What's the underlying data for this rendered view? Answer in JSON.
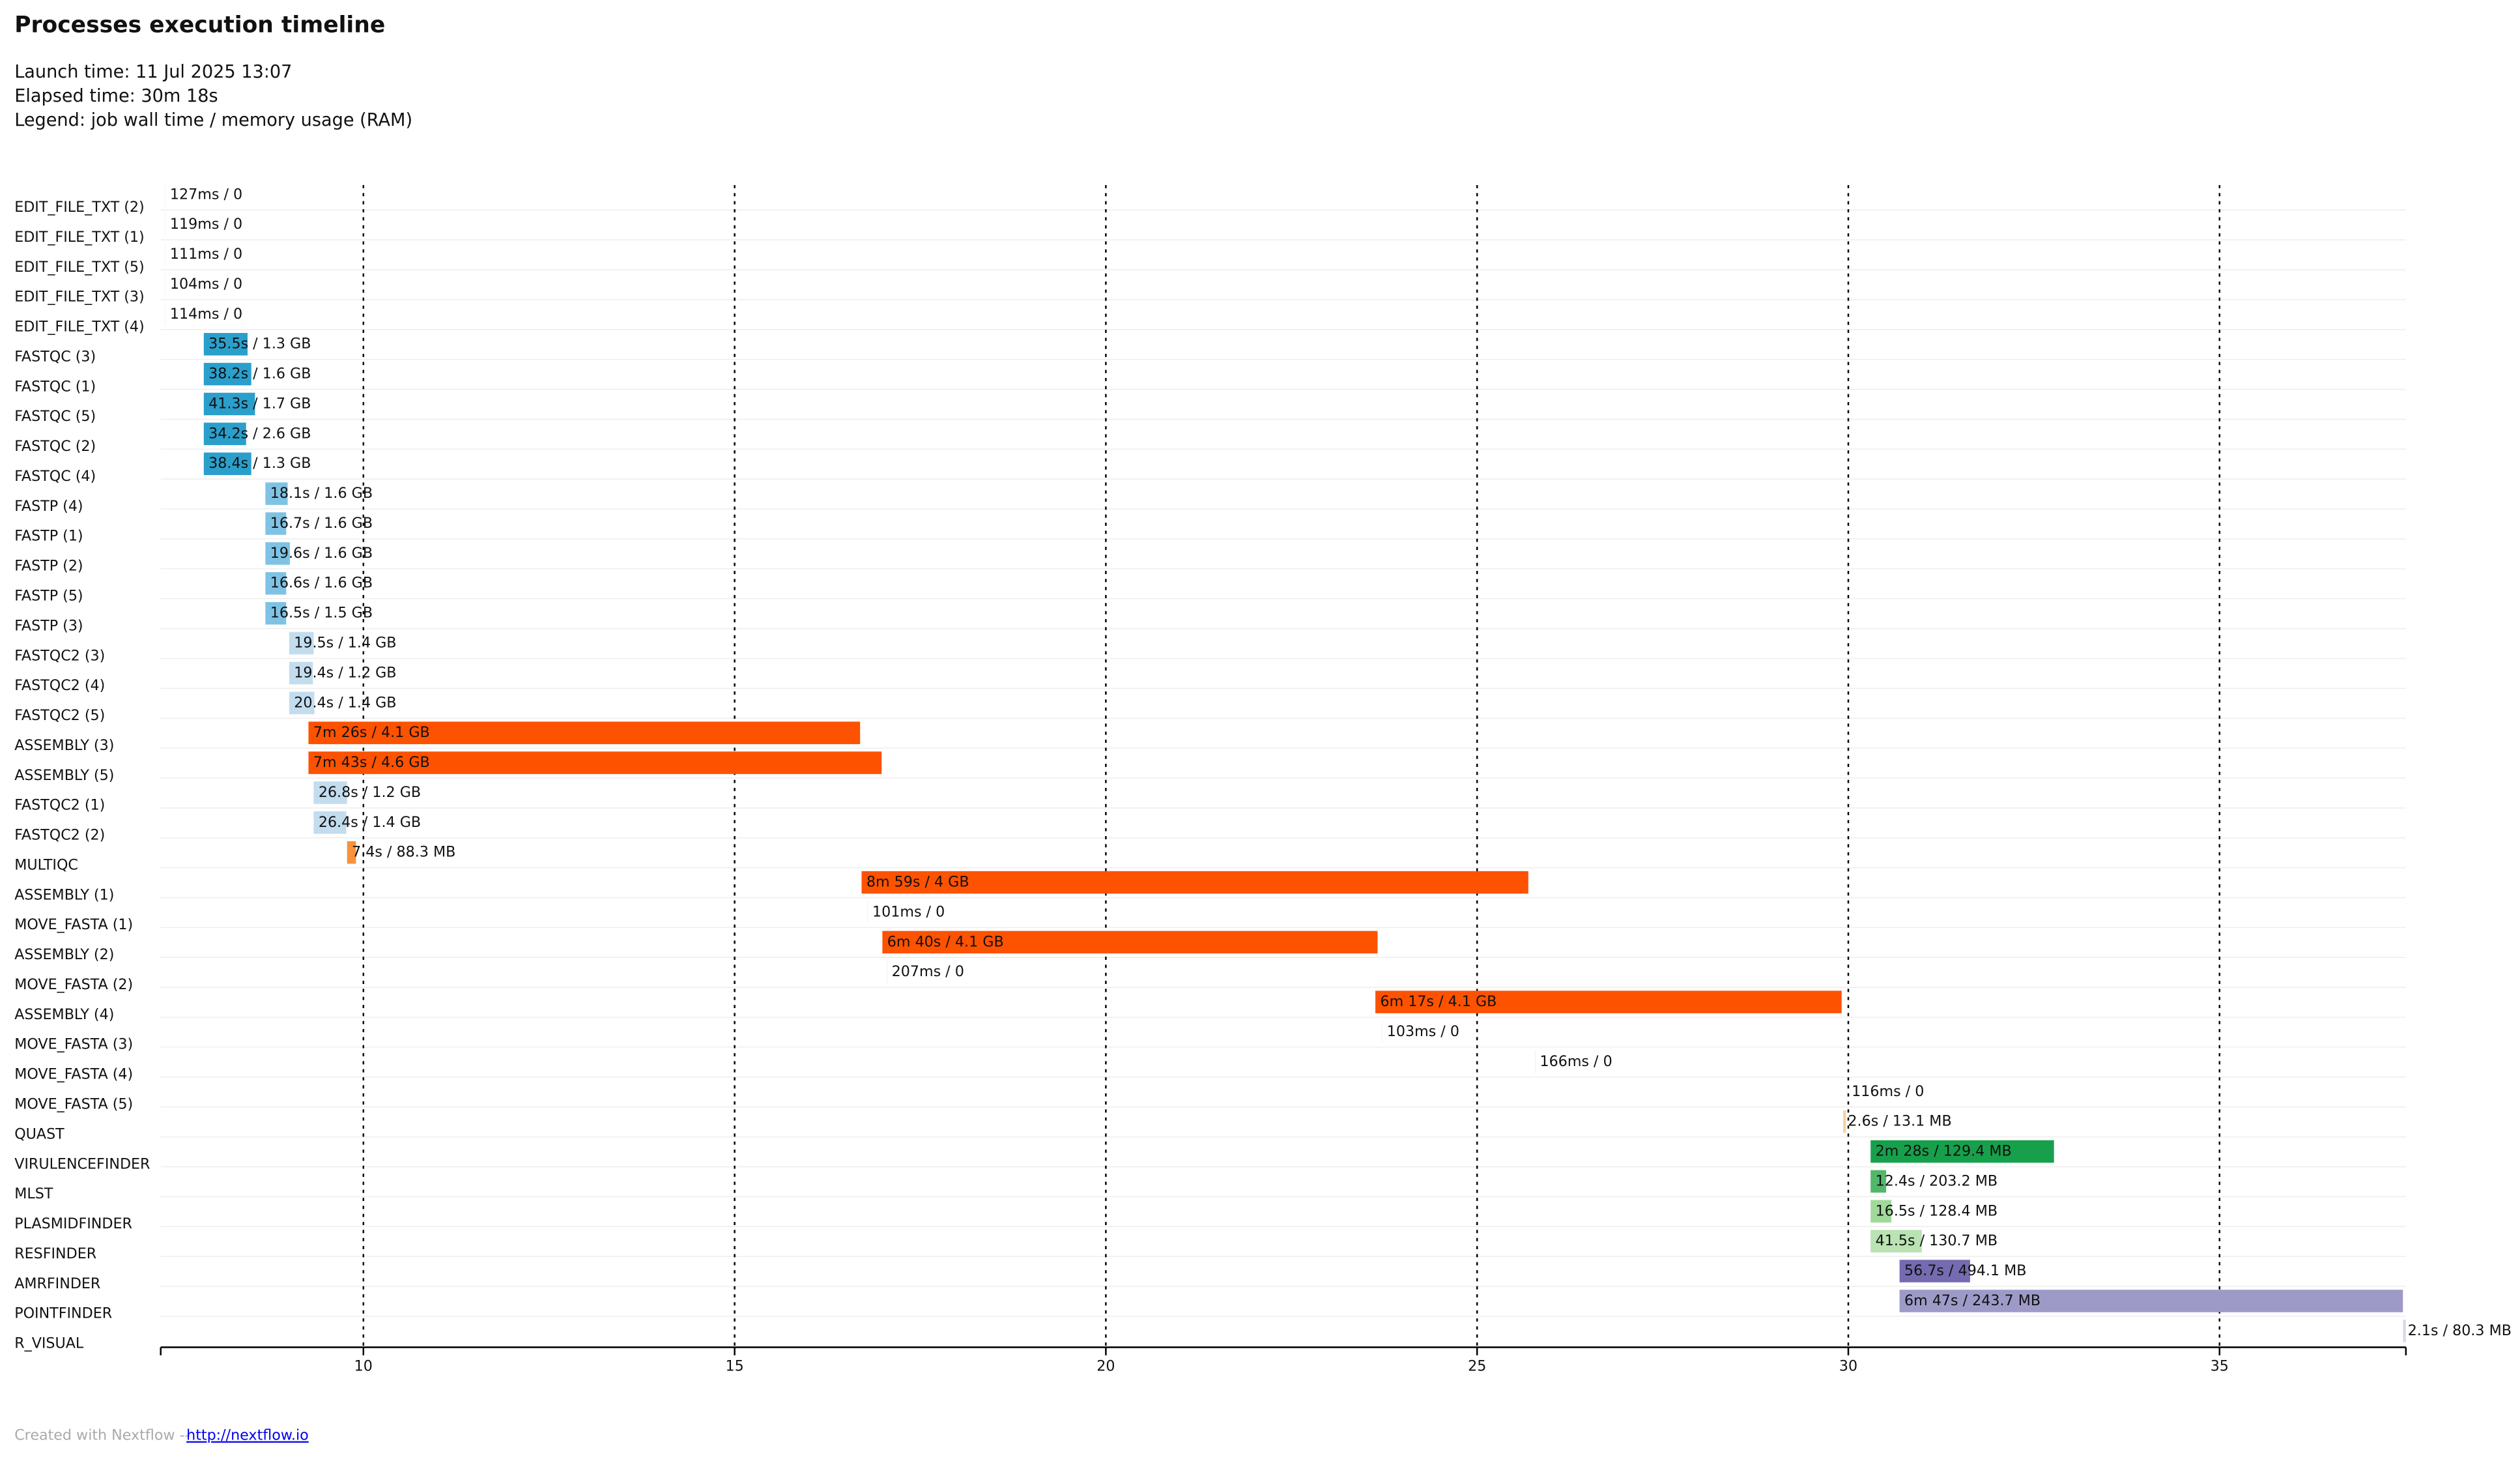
{
  "chart_data": {
    "type": "timeline",
    "title": "Processes execution timeline",
    "launch_time": "Launch time: 11 Jul 2025 13:07",
    "elapsed_time": "Elapsed time: 30m 18s",
    "legend": "Legend: job wall time / memory usage (RAM)",
    "xlim": [
      7.27,
      37.51
    ],
    "xticks": [
      10,
      15,
      20,
      25,
      30,
      35
    ],
    "grid": true,
    "tasks": [
      {
        "name": "EDIT_FILE_TXT (2)",
        "start": 7.33,
        "end": 7.332,
        "label": "127ms / 0",
        "color": "#cccccc"
      },
      {
        "name": "EDIT_FILE_TXT (1)",
        "start": 7.33,
        "end": 7.332,
        "label": "119ms / 0",
        "color": "#cccccc"
      },
      {
        "name": "EDIT_FILE_TXT (5)",
        "start": 7.33,
        "end": 7.332,
        "label": "111ms / 0",
        "color": "#cccccc"
      },
      {
        "name": "EDIT_FILE_TXT (3)",
        "start": 7.33,
        "end": 7.332,
        "label": "104ms / 0",
        "color": "#cccccc"
      },
      {
        "name": "EDIT_FILE_TXT (4)",
        "start": 7.33,
        "end": 7.332,
        "label": "114ms / 0",
        "color": "#cccccc"
      },
      {
        "name": "FASTQC (3)",
        "start": 7.85,
        "end": 8.44,
        "label": "35.5s / 1.3 GB",
        "color": "#2b9fcb"
      },
      {
        "name": "FASTQC (1)",
        "start": 7.85,
        "end": 8.49,
        "label": "38.2s / 1.6 GB",
        "color": "#2b9fcb"
      },
      {
        "name": "FASTQC (5)",
        "start": 7.85,
        "end": 8.54,
        "label": "41.3s / 1.7 GB",
        "color": "#2b9fcb"
      },
      {
        "name": "FASTQC (2)",
        "start": 7.85,
        "end": 8.42,
        "label": "34.2s / 2.6 GB",
        "color": "#2b9fcb"
      },
      {
        "name": "FASTQC (4)",
        "start": 7.85,
        "end": 8.49,
        "label": "38.4s / 1.3 GB",
        "color": "#2b9fcb"
      },
      {
        "name": "FASTP (4)",
        "start": 8.68,
        "end": 8.98,
        "label": "18.1s / 1.6 GB",
        "color": "#7fc3e4"
      },
      {
        "name": "FASTP (1)",
        "start": 8.68,
        "end": 8.96,
        "label": "16.7s / 1.6 GB",
        "color": "#7fc3e4"
      },
      {
        "name": "FASTP (2)",
        "start": 8.68,
        "end": 9.01,
        "label": "19.6s / 1.6 GB",
        "color": "#7fc3e4"
      },
      {
        "name": "FASTP (5)",
        "start": 8.68,
        "end": 8.96,
        "label": "16.6s / 1.6 GB",
        "color": "#7fc3e4"
      },
      {
        "name": "FASTP (3)",
        "start": 8.68,
        "end": 8.96,
        "label": "16.5s / 1.5 GB",
        "color": "#7fc3e4"
      },
      {
        "name": "FASTQC2 (3)",
        "start": 9.0,
        "end": 9.33,
        "label": "19.5s / 1.4 GB",
        "color": "#c3ddef"
      },
      {
        "name": "FASTQC2 (4)",
        "start": 9.0,
        "end": 9.32,
        "label": "19.4s / 1.2 GB",
        "color": "#c3ddef"
      },
      {
        "name": "FASTQC2 (5)",
        "start": 9.0,
        "end": 9.34,
        "label": "20.4s / 1.4 GB",
        "color": "#c3ddef"
      },
      {
        "name": "ASSEMBLY (3)",
        "start": 9.26,
        "end": 16.69,
        "label": "7m 26s / 4.1 GB",
        "color": "#fd5200"
      },
      {
        "name": "ASSEMBLY (5)",
        "start": 9.26,
        "end": 16.98,
        "label": "7m 43s / 4.6 GB",
        "color": "#fd5200"
      },
      {
        "name": "FASTQC2 (1)",
        "start": 9.33,
        "end": 9.78,
        "label": "26.8s / 1.2 GB",
        "color": "#c3ddef"
      },
      {
        "name": "FASTQC2 (2)",
        "start": 9.33,
        "end": 9.77,
        "label": "26.4s / 1.4 GB",
        "color": "#c3ddef"
      },
      {
        "name": "MULTIQC",
        "start": 9.78,
        "end": 9.9,
        "label": "7.4s / 88.3 MB",
        "color": "#f7923d"
      },
      {
        "name": "ASSEMBLY (1)",
        "start": 16.71,
        "end": 25.69,
        "label": "8m 59s / 4 GB",
        "color": "#fd5200"
      },
      {
        "name": "MOVE_FASTA (1)",
        "start": 16.79,
        "end": 16.792,
        "label": "101ms / 0",
        "color": "#cccccc"
      },
      {
        "name": "ASSEMBLY (2)",
        "start": 16.99,
        "end": 23.66,
        "label": "6m 40s / 4.1 GB",
        "color": "#fd5200"
      },
      {
        "name": "MOVE_FASTA (2)",
        "start": 17.05,
        "end": 17.053,
        "label": "207ms / 0",
        "color": "#cccccc"
      },
      {
        "name": "ASSEMBLY (4)",
        "start": 23.63,
        "end": 29.91,
        "label": "6m 17s / 4.1 GB",
        "color": "#fd5200"
      },
      {
        "name": "MOVE_FASTA (3)",
        "start": 23.72,
        "end": 23.722,
        "label": "103ms / 0",
        "color": "#cccccc"
      },
      {
        "name": "MOVE_FASTA (4)",
        "start": 25.78,
        "end": 25.783,
        "label": "166ms / 0",
        "color": "#cccccc"
      },
      {
        "name": "MOVE_FASTA (5)",
        "start": 29.98,
        "end": 29.982,
        "label": "116ms / 0",
        "color": "#cccccc"
      },
      {
        "name": "QUAST",
        "start": 29.93,
        "end": 29.97,
        "label": "2.6s / 13.1 MB",
        "color": "#fdd0a2"
      },
      {
        "name": "VIRULENCEFINDER",
        "start": 30.3,
        "end": 32.77,
        "label": "2m 28s / 129.4 MB",
        "color": "#17a04b"
      },
      {
        "name": "MLST",
        "start": 30.3,
        "end": 30.51,
        "label": "12.4s / 203.2 MB",
        "color": "#52b76a"
      },
      {
        "name": "PLASMIDFINDER",
        "start": 30.3,
        "end": 30.58,
        "label": "16.5s / 128.4 MB",
        "color": "#a1d99b"
      },
      {
        "name": "RESFINDER",
        "start": 30.3,
        "end": 30.99,
        "label": "41.5s / 130.7 MB",
        "color": "#b9e3b2"
      },
      {
        "name": "AMRFINDER",
        "start": 30.69,
        "end": 31.64,
        "label": "56.7s / 494.1 MB",
        "color": "#756bb1"
      },
      {
        "name": "POINTFINDER",
        "start": 30.69,
        "end": 37.47,
        "label": "6m 47s / 243.7 MB",
        "color": "#9e9ac8"
      },
      {
        "name": "R_VISUAL",
        "start": 37.47,
        "end": 37.51,
        "label": "2.1s / 80.3 MB",
        "color": "#dadaeb"
      }
    ],
    "footer": {
      "text": "Created with Nextflow --",
      "link": "http://nextflow.io"
    }
  }
}
